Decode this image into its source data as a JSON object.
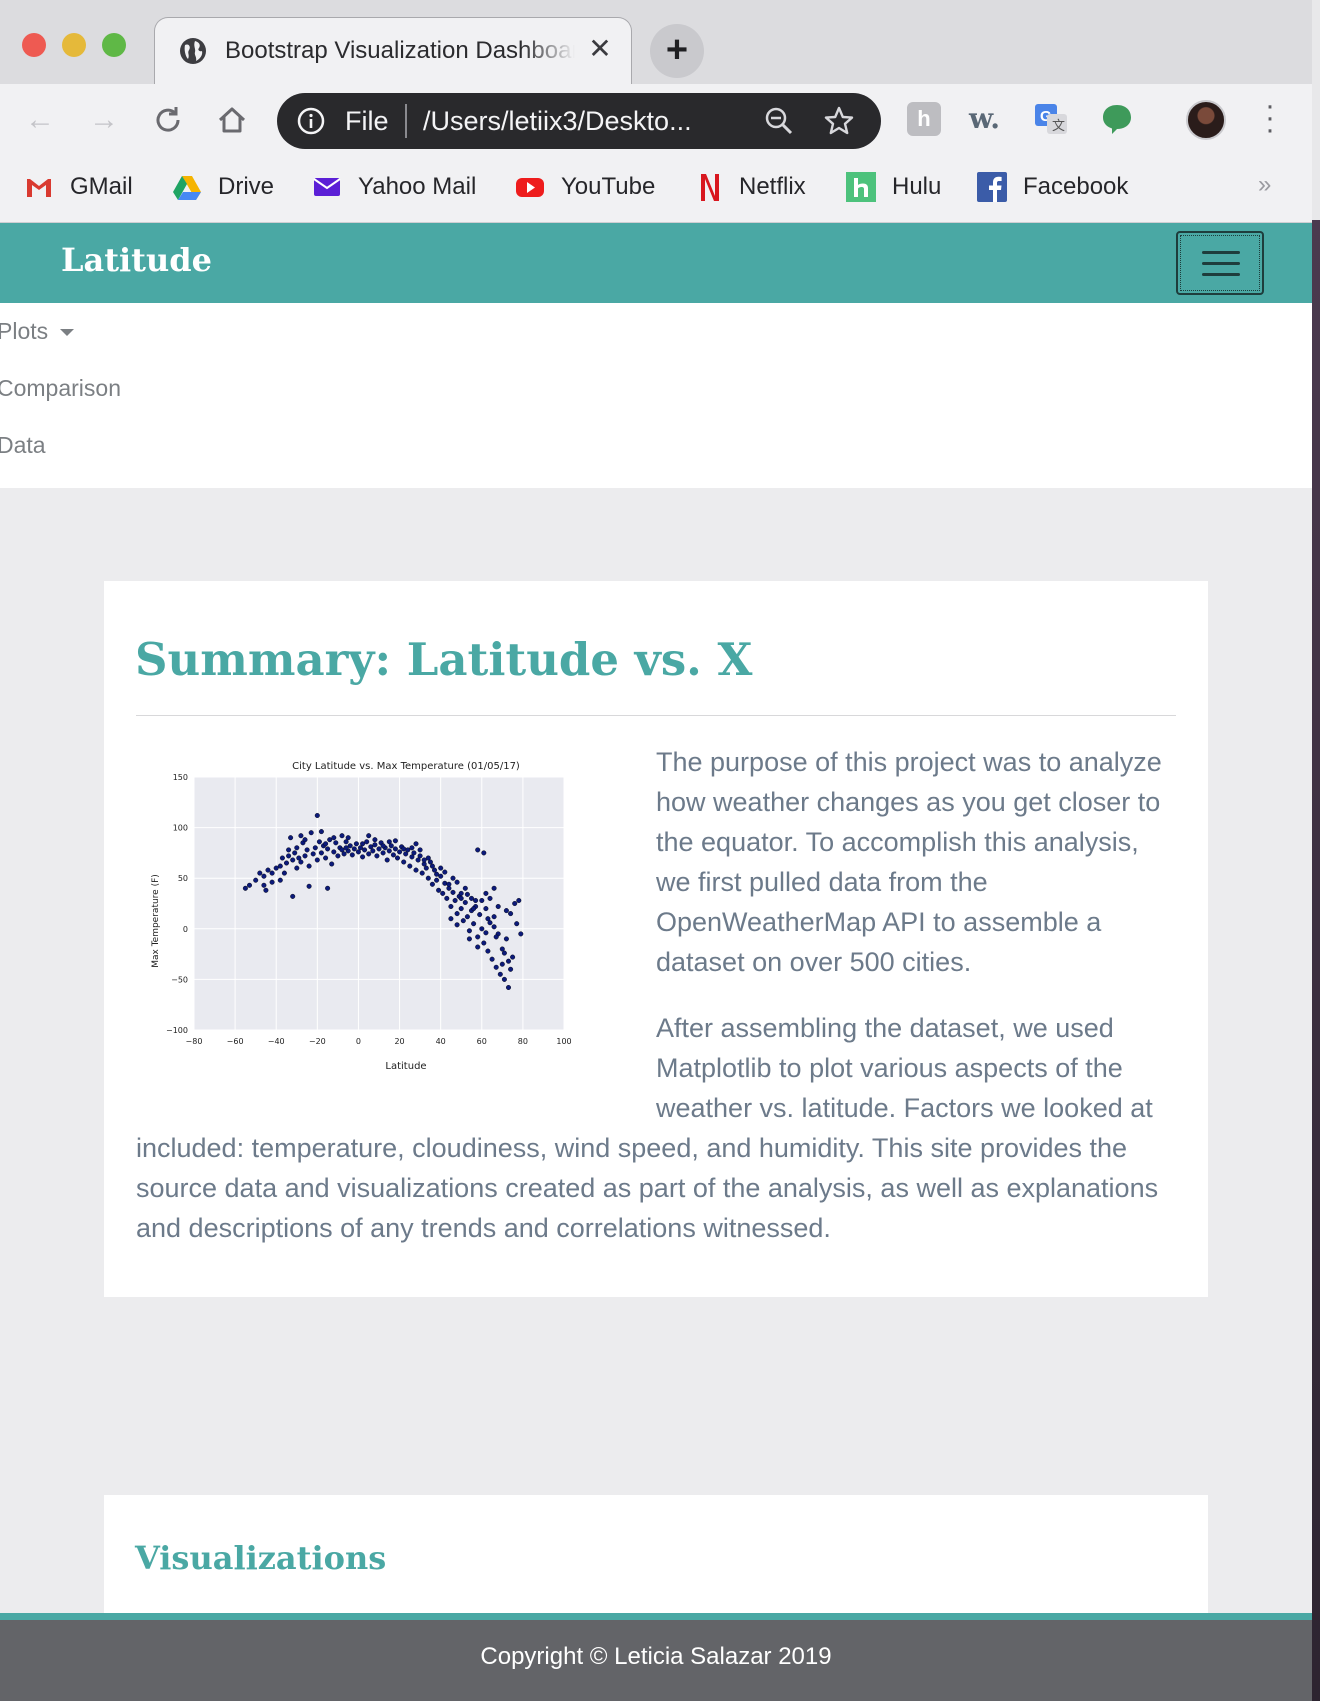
{
  "browser": {
    "tab_title": "Bootstrap Visualization Dashboard",
    "omnibox_scheme": "File",
    "omnibox_url": "/Users/letiix3/Deskto...",
    "bookmarks": [
      {
        "label": "GMail",
        "icon": "gmail-icon"
      },
      {
        "label": "Drive",
        "icon": "drive-icon"
      },
      {
        "label": "Yahoo Mail",
        "icon": "yahoo-mail-icon"
      },
      {
        "label": "YouTube",
        "icon": "youtube-icon"
      },
      {
        "label": "Netflix",
        "icon": "netflix-icon"
      },
      {
        "label": "Hulu",
        "icon": "hulu-icon"
      },
      {
        "label": "Facebook",
        "icon": "facebook-icon"
      }
    ],
    "bookmarks_more": "»"
  },
  "navbar": {
    "brand": "Latitude",
    "menu": [
      "Plots",
      "Comparison",
      "Data"
    ]
  },
  "summary": {
    "heading": "Summary: Latitude vs. X",
    "paragraph1": "The purpose of this project was to analyze how weather changes as you get closer to the equator. To accomplish this analysis, we first pulled data from the OpenWeatherMap API to assemble a dataset on over 500 cities.",
    "paragraph2_lines_wrap": "After assembling the dataset, we used Matplotlib to plot various aspects of the weather vs. latitude. Factors we looked at",
    "paragraph2_rest": "included: temperature, cloudiness, wind speed, and humidity. This site provides the source data and visualizations created as part of the analysis, as well as explanations and descriptions of any trends and correlations witnessed."
  },
  "visualizations": {
    "heading": "Visualizations"
  },
  "footer": {
    "text": "Copyright © Leticia Salazar 2019"
  },
  "colors": {
    "accent": "#4aa8a4",
    "footer_bg": "#636468",
    "body_text": "#6c7a8a",
    "point": "#0c1a7a"
  },
  "chart_data": {
    "type": "scatter",
    "title": "City Latitude vs. Max Temperature (01/05/17)",
    "xlabel": "Latitude",
    "ylabel": "Max Temperature (F)",
    "xlim": [
      -80,
      100
    ],
    "ylim": [
      -100,
      150
    ],
    "xticks": [
      -80,
      -60,
      -40,
      -20,
      0,
      20,
      40,
      60,
      80,
      100
    ],
    "yticks": [
      -100,
      -50,
      0,
      50,
      100,
      150
    ],
    "grid": true,
    "points": [
      [
        -55,
        40
      ],
      [
        -53,
        43
      ],
      [
        -50,
        48
      ],
      [
        -48,
        55
      ],
      [
        -46,
        52
      ],
      [
        -45,
        38
      ],
      [
        -44,
        58
      ],
      [
        -42,
        46
      ],
      [
        -40,
        60
      ],
      [
        -38,
        62
      ],
      [
        -37,
        70
      ],
      [
        -36,
        55
      ],
      [
        -35,
        65
      ],
      [
        -34,
        72
      ],
      [
        -33,
        90
      ],
      [
        -32,
        68
      ],
      [
        -31,
        75
      ],
      [
        -30,
        60
      ],
      [
        -30,
        80
      ],
      [
        -29,
        70
      ],
      [
        -28,
        66
      ],
      [
        -27,
        85
      ],
      [
        -26,
        72
      ],
      [
        -25,
        78
      ],
      [
        -24,
        62
      ],
      [
        -23,
        95
      ],
      [
        -22,
        74
      ],
      [
        -21,
        80
      ],
      [
        -20,
        112
      ],
      [
        -20,
        68
      ],
      [
        -19,
        86
      ],
      [
        -18,
        75
      ],
      [
        -17,
        82
      ],
      [
        -16,
        70
      ],
      [
        -15,
        79
      ],
      [
        -14,
        88
      ],
      [
        -13,
        64
      ],
      [
        -12,
        76
      ],
      [
        -11,
        85
      ],
      [
        -10,
        72
      ],
      [
        -9,
        80
      ],
      [
        -8,
        78
      ],
      [
        -7,
        74
      ],
      [
        -6,
        86
      ],
      [
        -5,
        77
      ],
      [
        -4,
        82
      ],
      [
        -3,
        73
      ],
      [
        -2,
        79
      ],
      [
        -1,
        84
      ],
      [
        0,
        76
      ],
      [
        1,
        80
      ],
      [
        2,
        71
      ],
      [
        3,
        78
      ],
      [
        4,
        86
      ],
      [
        5,
        74
      ],
      [
        6,
        81
      ],
      [
        7,
        77
      ],
      [
        8,
        83
      ],
      [
        9,
        72
      ],
      [
        10,
        79
      ],
      [
        11,
        85
      ],
      [
        12,
        75
      ],
      [
        13,
        80
      ],
      [
        14,
        68
      ],
      [
        15,
        77
      ],
      [
        16,
        82
      ],
      [
        17,
        73
      ],
      [
        18,
        79
      ],
      [
        19,
        70
      ],
      [
        20,
        76
      ],
      [
        21,
        81
      ],
      [
        22,
        66
      ],
      [
        23,
        74
      ],
      [
        24,
        78
      ],
      [
        25,
        62
      ],
      [
        26,
        71
      ],
      [
        27,
        75
      ],
      [
        28,
        58
      ],
      [
        29,
        68
      ],
      [
        30,
        72
      ],
      [
        31,
        55
      ],
      [
        32,
        64
      ],
      [
        33,
        60
      ],
      [
        34,
        50
      ],
      [
        35,
        66
      ],
      [
        36,
        44
      ],
      [
        37,
        58
      ],
      [
        38,
        48
      ],
      [
        39,
        38
      ],
      [
        40,
        52
      ],
      [
        41,
        35
      ],
      [
        42,
        45
      ],
      [
        43,
        30
      ],
      [
        44,
        40
      ],
      [
        45,
        22
      ],
      [
        46,
        36
      ],
      [
        47,
        28
      ],
      [
        48,
        15
      ],
      [
        49,
        32
      ],
      [
        50,
        20
      ],
      [
        51,
        8
      ],
      [
        52,
        26
      ],
      [
        53,
        12
      ],
      [
        54,
        -2
      ],
      [
        55,
        18
      ],
      [
        56,
        5
      ],
      [
        57,
        28
      ],
      [
        58,
        -8
      ],
      [
        59,
        14
      ],
      [
        60,
        0
      ],
      [
        61,
        -14
      ],
      [
        62,
        20
      ],
      [
        63,
        -22
      ],
      [
        64,
        6
      ],
      [
        65,
        -30
      ],
      [
        66,
        12
      ],
      [
        67,
        -38
      ],
      [
        68,
        -5
      ],
      [
        69,
        -45
      ],
      [
        70,
        -20
      ],
      [
        71,
        -50
      ],
      [
        72,
        -10
      ],
      [
        73,
        -58
      ],
      [
        74,
        15
      ],
      [
        75,
        -28
      ],
      [
        76,
        25
      ],
      [
        77,
        5
      ],
      [
        78,
        28
      ],
      [
        79,
        -5
      ],
      [
        58,
        78
      ],
      [
        61,
        75
      ],
      [
        -32,
        32
      ],
      [
        -24,
        42
      ],
      [
        -15,
        40
      ],
      [
        -46,
        43
      ],
      [
        45,
        10
      ],
      [
        50,
        35
      ],
      [
        55,
        30
      ],
      [
        62,
        35
      ],
      [
        66,
        40
      ],
      [
        -12,
        90
      ],
      [
        -8,
        92
      ],
      [
        8,
        88
      ],
      [
        15,
        86
      ],
      [
        28,
        84
      ],
      [
        30,
        78
      ],
      [
        36,
        62
      ],
      [
        42,
        56
      ],
      [
        48,
        46
      ],
      [
        52,
        40
      ],
      [
        -38,
        48
      ],
      [
        -28,
        92
      ],
      [
        -18,
        96
      ],
      [
        -5,
        90
      ],
      [
        5,
        92
      ],
      [
        18,
        87
      ],
      [
        26,
        80
      ],
      [
        34,
        70
      ],
      [
        40,
        60
      ],
      [
        46,
        50
      ],
      [
        53,
        34
      ],
      [
        57,
        22
      ],
      [
        63,
        10
      ],
      [
        67,
        -8
      ],
      [
        71,
        -24
      ],
      [
        74,
        -40
      ],
      [
        60,
        28
      ],
      [
        64,
        30
      ],
      [
        68,
        22
      ],
      [
        72,
        18
      ],
      [
        -42,
        55
      ],
      [
        -34,
        78
      ],
      [
        -26,
        88
      ],
      [
        -16,
        84
      ],
      [
        -6,
        80
      ],
      [
        2,
        84
      ],
      [
        12,
        82
      ],
      [
        22,
        79
      ],
      [
        32,
        68
      ],
      [
        38,
        54
      ],
      [
        44,
        44
      ],
      [
        50,
        30
      ],
      [
        56,
        20
      ],
      [
        62,
        -4
      ],
      [
        66,
        2
      ],
      [
        70,
        -35
      ],
      [
        73,
        -32
      ],
      [
        58,
        -18
      ],
      [
        54,
        -10
      ],
      [
        48,
        4
      ]
    ]
  }
}
